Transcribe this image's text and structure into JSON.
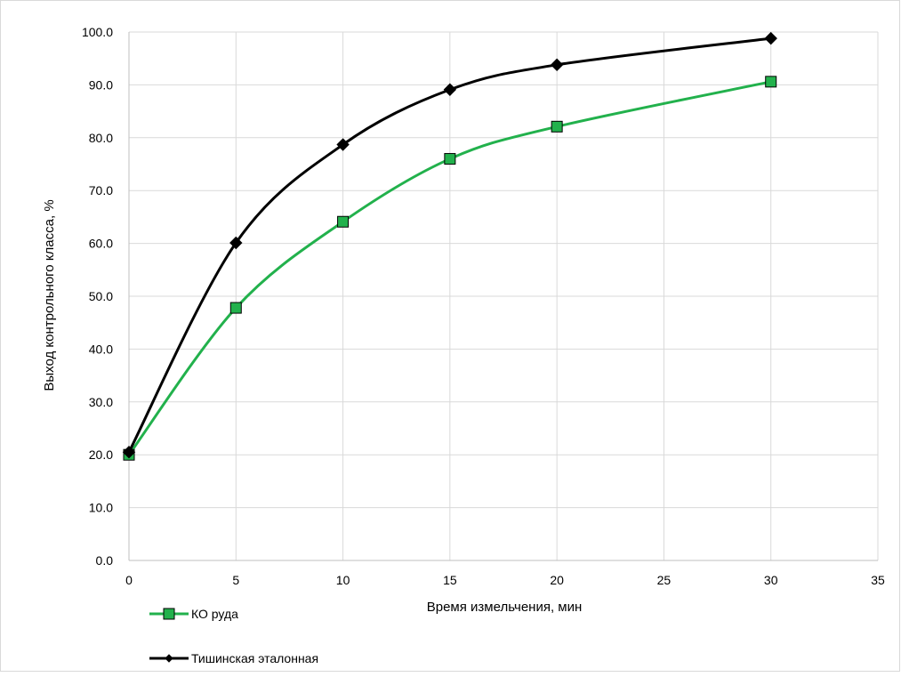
{
  "chart_data": {
    "type": "line",
    "xlabel": "Время измельчения, мин",
    "ylabel": "Выход контрольного класса, %",
    "xlim": [
      0,
      35
    ],
    "ylim": [
      0,
      100
    ],
    "x_ticks": [
      0,
      5,
      10,
      15,
      20,
      25,
      30,
      35
    ],
    "y_ticks": [
      0,
      10,
      20,
      30,
      40,
      50,
      60,
      70,
      80,
      90,
      100
    ],
    "x_tick_labels": [
      "0",
      "5",
      "10",
      "15",
      "20",
      "25",
      "30",
      "35"
    ],
    "y_tick_labels": [
      "0.0",
      "10.0",
      "20.0",
      "30.0",
      "40.0",
      "50.0",
      "60.0",
      "70.0",
      "80.0",
      "90.0",
      "100.0"
    ],
    "grid": true,
    "legend": "bottom-left",
    "smooth": true,
    "series": [
      {
        "name": "КО руда",
        "color": "#22b14c",
        "marker": "square",
        "x": [
          0,
          5,
          10,
          15,
          20,
          30
        ],
        "y": [
          20.0,
          47.8,
          64.1,
          76.0,
          82.1,
          90.6
        ]
      },
      {
        "name": "Тишинская эталонная",
        "color": "#000000",
        "marker": "diamond",
        "x": [
          0,
          5,
          10,
          15,
          20,
          30
        ],
        "y": [
          20.5,
          60.1,
          78.7,
          89.1,
          93.8,
          98.8
        ]
      }
    ]
  }
}
